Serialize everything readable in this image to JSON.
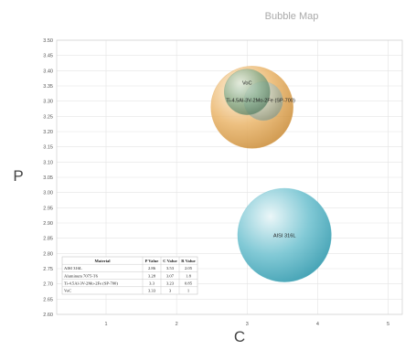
{
  "chart_data": {
    "type": "bubble",
    "title": "Bubble Map",
    "xlabel": "C",
    "ylabel": "P",
    "xlim": [
      0.3,
      5.2
    ],
    "ylim": [
      2.6,
      3.5
    ],
    "x_ticks": [
      "1",
      "2",
      "3",
      "4",
      "5"
    ],
    "y_ticks": [
      "2.60",
      "2.65",
      "2.70",
      "2.75",
      "2.80",
      "2.85",
      "2.90",
      "2.95",
      "3.00",
      "3.05",
      "3.10",
      "3.15",
      "3.20",
      "3.25",
      "3.30",
      "3.35",
      "3.40",
      "3.45",
      "3.50"
    ],
    "grid": true,
    "points": [
      {
        "label": "AISI 316L",
        "x": 3.53,
        "y": 2.86,
        "r": 2.05,
        "color": "#5bb8c8"
      },
      {
        "label": "Aluminum 7075-T6",
        "x": 3.07,
        "y": 3.28,
        "r": 1.8,
        "color": "#e0a24c"
      },
      {
        "label": "Ti-4.5Al-3V-2Mo-2Fe (SP-700)",
        "x": 3.23,
        "y": 3.3,
        "r": 0.85,
        "color": "#a9b6a8"
      },
      {
        "label": "VoC",
        "x": 3.0,
        "y": 3.33,
        "r": 1.0,
        "color": "#6e9a7a"
      }
    ],
    "table": {
      "headers": [
        "Material",
        "P Value",
        "C Value",
        "R Value"
      ],
      "rows": [
        [
          "AISI 316L",
          "2.86",
          "3.53",
          "2.05"
        ],
        [
          "Aluminum 7075-T6",
          "3.28",
          "3.07",
          "1.8"
        ],
        [
          "Ti-4.5Al-3V-2Mo-2Fe (SP-700)",
          "3.3",
          "3.23",
          "0.85"
        ],
        [
          "VoC",
          "3.33",
          "3",
          "1"
        ]
      ]
    }
  }
}
